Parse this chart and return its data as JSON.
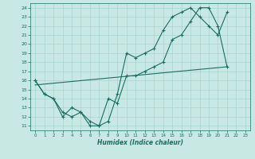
{
  "xlabel": "Humidex (Indice chaleur)",
  "xlim": [
    -0.5,
    23.5
  ],
  "ylim": [
    10.5,
    24.5
  ],
  "xticks": [
    0,
    1,
    2,
    3,
    4,
    5,
    6,
    7,
    8,
    9,
    10,
    11,
    12,
    13,
    14,
    15,
    16,
    17,
    18,
    19,
    20,
    21,
    22,
    23
  ],
  "yticks": [
    11,
    12,
    13,
    14,
    15,
    16,
    17,
    18,
    19,
    20,
    21,
    22,
    23,
    24
  ],
  "bg_color": "#c8e8e4",
  "line_color": "#1a6e62",
  "grid_color": "#a8d4cf",
  "line1_x": [
    0,
    1,
    2,
    3,
    4,
    5,
    6,
    7,
    8,
    9,
    10,
    11,
    12,
    13,
    14,
    15,
    16,
    17,
    18,
    19,
    20,
    21
  ],
  "line1_y": [
    16,
    14.5,
    14,
    12,
    13,
    12.5,
    11,
    11,
    11.5,
    14.5,
    19,
    18.5,
    19,
    19.5,
    21.5,
    23,
    23.5,
    24,
    23,
    22,
    21,
    23.5
  ],
  "line2_x": [
    0,
    1,
    2,
    3,
    4,
    5,
    6,
    7,
    8,
    9,
    10,
    11,
    12,
    13,
    14,
    15,
    16,
    17,
    18,
    19,
    20,
    21
  ],
  "line2_y": [
    16,
    14.5,
    14,
    12.5,
    12,
    12.5,
    11.5,
    11,
    14,
    13.5,
    16.5,
    16.5,
    17,
    17.5,
    18,
    20.5,
    21,
    22.5,
    24,
    24,
    22,
    17.5
  ],
  "line3_x": [
    0,
    21
  ],
  "line3_y": [
    15.5,
    17.5
  ]
}
